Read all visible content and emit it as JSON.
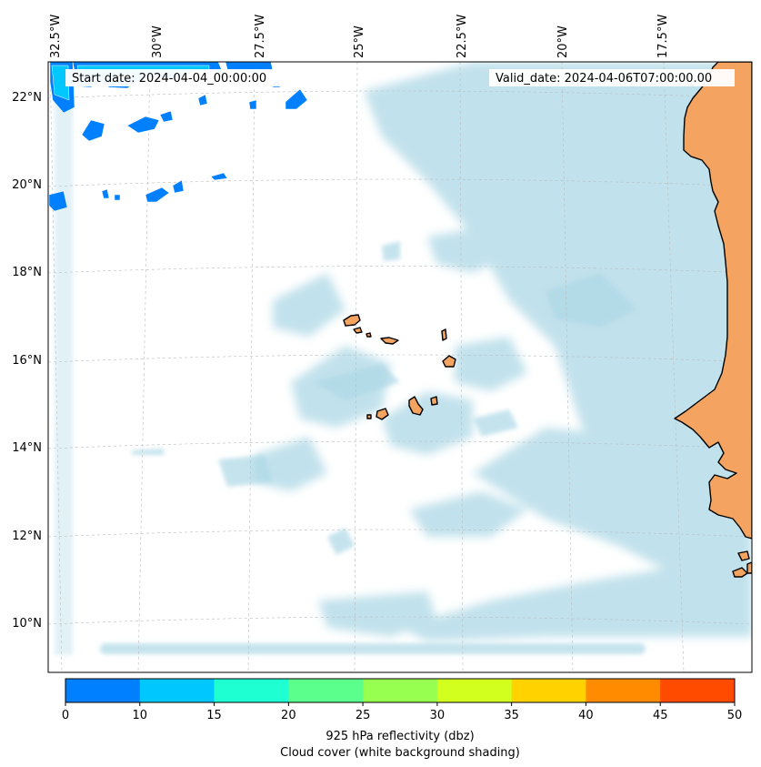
{
  "map": {
    "start_date": "Start date: 2024-04-04_00:00:00",
    "valid_date": "Valid_date: 2024-04-06T07:00:00.00",
    "lon_labels": [
      "32.5°W",
      "30°W",
      "27.5°W",
      "25°W",
      "22.5°W",
      "20°W",
      "17.5°W"
    ],
    "lat_labels": [
      "22°N",
      "20°N",
      "18°N",
      "16°N",
      "14°N",
      "12°N",
      "10°N"
    ],
    "ocean_color": "#ffffff",
    "cloud_color": "#add8e6",
    "land_color": "#f4a460",
    "coast_color": "#000000"
  },
  "colorbar": {
    "ticks": [
      "0",
      "10",
      "15",
      "20",
      "25",
      "30",
      "35",
      "40",
      "45",
      "50"
    ],
    "colors": [
      "#0080ff",
      "#00c8ff",
      "#1effd2",
      "#5aff8c",
      "#96ff50",
      "#d2ff1e",
      "#ffd200",
      "#ff8c00",
      "#ff4b00"
    ],
    "label": "925 hPa reflectivity (dbz)",
    "sublabel": "Cloud cover (white background shading)"
  }
}
